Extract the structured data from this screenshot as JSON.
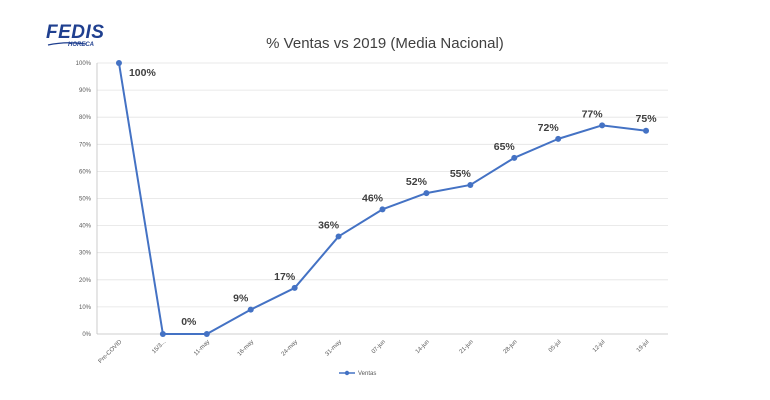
{
  "logo": {
    "main": "FEDIS",
    "sub": "HORECA"
  },
  "chart_data": {
    "type": "line",
    "title": "% Ventas vs 2019 (Media Nacional)",
    "xlabel": "",
    "ylabel": "",
    "categories": [
      "Pre-COVID",
      "15/3...",
      "11-may",
      "16-may",
      "24-may",
      "31-may",
      "07-jun",
      "14-jun",
      "21-jun",
      "28-jun",
      "05-jul",
      "12-jul",
      "19-jul"
    ],
    "series": [
      {
        "name": "Ventas",
        "values": [
          100,
          0,
          0,
          9,
          17,
          36,
          46,
          52,
          55,
          65,
          72,
          77,
          75
        ],
        "data_labels": [
          "100%",
          "",
          "0%",
          "9%",
          "17%",
          "36%",
          "46%",
          "52%",
          "55%",
          "65%",
          "72%",
          "77%",
          "75%"
        ]
      }
    ],
    "ylim": [
      0,
      100
    ],
    "yticks": [
      "0%",
      "10%",
      "20%",
      "30%",
      "40%",
      "50%",
      "60%",
      "70%",
      "80%",
      "90%",
      "100%"
    ],
    "grid": true,
    "legend": "bottom",
    "colors": {
      "line": "#4472c4",
      "grid": "#e3e3e3",
      "axis": "#bfbfbf"
    }
  }
}
